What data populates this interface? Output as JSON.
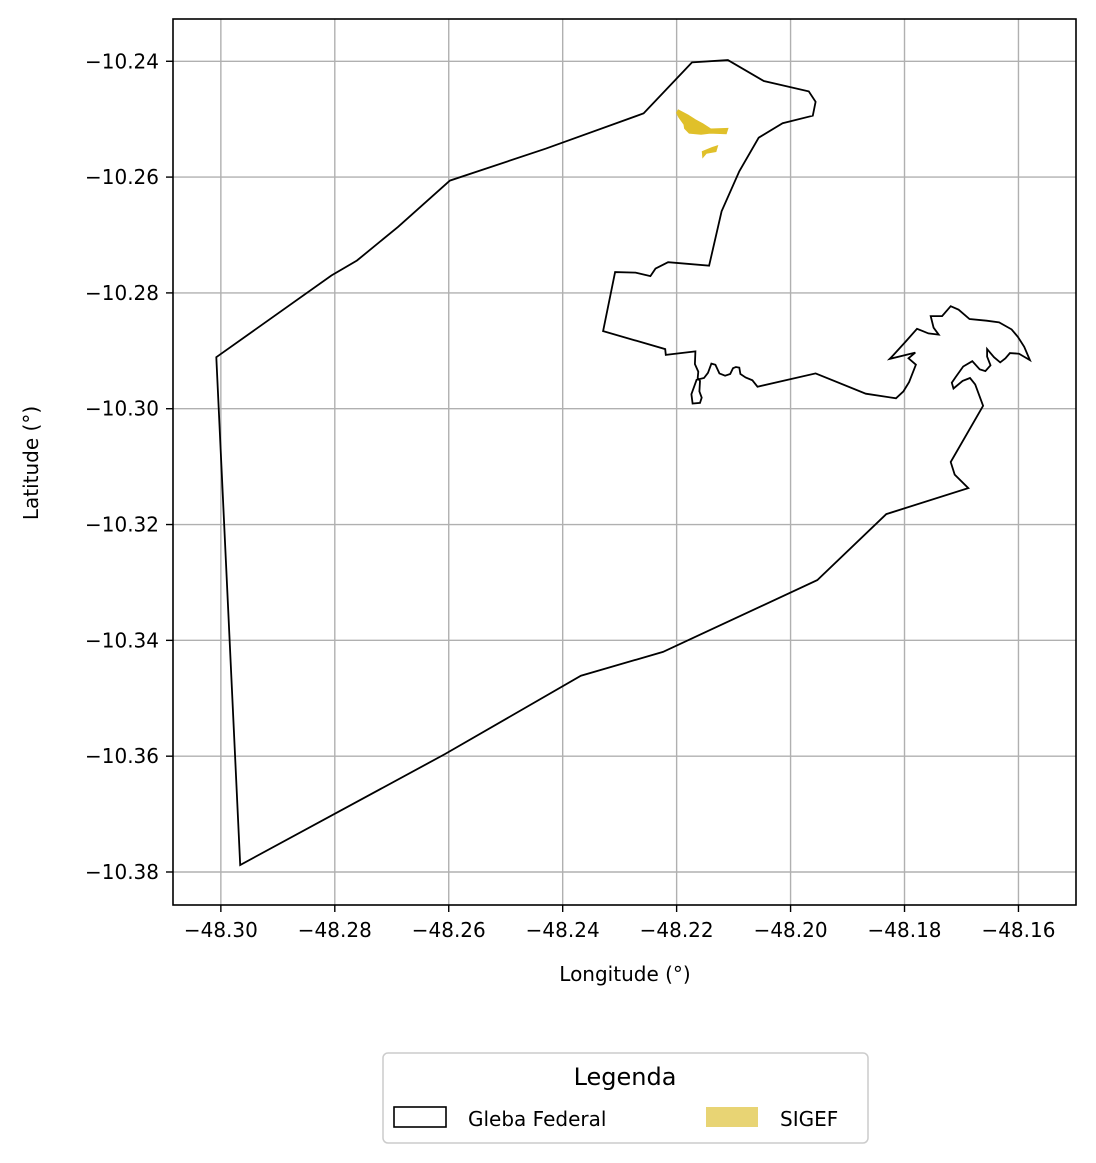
{
  "chart_data": {
    "type": "map",
    "xlabel": "Longitude (°)",
    "ylabel": "Latitude (°)",
    "xlim": [
      -48.3084,
      -48.1499
    ],
    "ylim": [
      -10.3857,
      -10.2327
    ],
    "grid": true,
    "x_ticks": [
      {
        "value": -48.3,
        "label": "−48.30"
      },
      {
        "value": -48.28,
        "label": "−48.28"
      },
      {
        "value": -48.26,
        "label": "−48.26"
      },
      {
        "value": -48.24,
        "label": "−48.24"
      },
      {
        "value": -48.22,
        "label": "−48.22"
      },
      {
        "value": -48.2,
        "label": "−48.20"
      },
      {
        "value": -48.18,
        "label": "−48.18"
      },
      {
        "value": -48.16,
        "label": "−48.16"
      }
    ],
    "y_ticks": [
      {
        "value": -10.24,
        "label": "−10.24"
      },
      {
        "value": -10.26,
        "label": "−10.26"
      },
      {
        "value": -10.28,
        "label": "−10.28"
      },
      {
        "value": -10.3,
        "label": "−10.30"
      },
      {
        "value": -10.32,
        "label": "−10.32"
      },
      {
        "value": -10.34,
        "label": "−10.34"
      },
      {
        "value": -10.36,
        "label": "−10.36"
      },
      {
        "value": -10.38,
        "label": "−10.38"
      }
    ],
    "legend": {
      "title": "Legenda",
      "placement": "bottom-center",
      "entries": [
        {
          "label": "Gleba Federal",
          "style": "outline",
          "color": "#000000"
        },
        {
          "label": "SIGEF",
          "style": "fill",
          "color": "#e8d474"
        }
      ]
    },
    "layers": [
      {
        "name": "Gleba Federal",
        "type": "polygon-outline",
        "stroke": "#000000",
        "coordinates": [
          [
            -48.3008,
            -10.2911
          ],
          [
            -48.2806,
            -10.277
          ],
          [
            -48.2761,
            -10.2744
          ],
          [
            -48.2689,
            -10.2686
          ],
          [
            -48.2598,
            -10.2606
          ],
          [
            -48.243,
            -10.2551
          ],
          [
            -48.2258,
            -10.249
          ],
          [
            -48.2173,
            -10.2402
          ],
          [
            -48.211,
            -10.2398
          ],
          [
            -48.2047,
            -10.2434
          ],
          [
            -48.1968,
            -10.2452
          ],
          [
            -48.1956,
            -10.247
          ],
          [
            -48.1961,
            -10.2494
          ],
          [
            -48.2014,
            -10.2507
          ],
          [
            -48.2056,
            -10.2532
          ],
          [
            -48.209,
            -10.259
          ],
          [
            -48.2121,
            -10.2659
          ],
          [
            -48.2143,
            -10.2753
          ],
          [
            -48.2215,
            -10.2747
          ],
          [
            -48.2237,
            -10.2758
          ],
          [
            -48.2246,
            -10.2771
          ],
          [
            -48.2272,
            -10.2765
          ],
          [
            -48.2308,
            -10.2764
          ],
          [
            -48.2329,
            -10.2866
          ],
          [
            -48.222,
            -10.2897
          ],
          [
            -48.2219,
            -10.2907
          ],
          [
            -48.2167,
            -10.2901
          ],
          [
            -48.2168,
            -10.2923
          ],
          [
            -48.2162,
            -10.2936
          ],
          [
            -48.2163,
            -10.2947
          ],
          [
            -48.2159,
            -10.2952
          ],
          [
            -48.216,
            -10.297
          ],
          [
            -48.2156,
            -10.2981
          ],
          [
            -48.2159,
            -10.299
          ],
          [
            -48.2172,
            -10.2991
          ],
          [
            -48.2174,
            -10.2975
          ],
          [
            -48.2165,
            -10.295
          ],
          [
            -48.2152,
            -10.2947
          ],
          [
            -48.2145,
            -10.2938
          ],
          [
            -48.2139,
            -10.2922
          ],
          [
            -48.2132,
            -10.2924
          ],
          [
            -48.2125,
            -10.2939
          ],
          [
            -48.2115,
            -10.2943
          ],
          [
            -48.2106,
            -10.294
          ],
          [
            -48.2101,
            -10.293
          ],
          [
            -48.2096,
            -10.2928
          ],
          [
            -48.209,
            -10.2929
          ],
          [
            -48.2088,
            -10.294
          ],
          [
            -48.2079,
            -10.2946
          ],
          [
            -48.2067,
            -10.2951
          ],
          [
            -48.2058,
            -10.2962
          ],
          [
            -48.1956,
            -10.2939
          ],
          [
            -48.1868,
            -10.2974
          ],
          [
            -48.1815,
            -10.2982
          ],
          [
            -48.1802,
            -10.297
          ],
          [
            -48.1792,
            -10.2954
          ],
          [
            -48.178,
            -10.2924
          ],
          [
            -48.1793,
            -10.2913
          ],
          [
            -48.1781,
            -10.2903
          ],
          [
            -48.1826,
            -10.2914
          ],
          [
            -48.182,
            -10.2908
          ],
          [
            -48.1797,
            -10.2883
          ],
          [
            -48.1778,
            -10.2862
          ],
          [
            -48.1768,
            -10.2866
          ],
          [
            -48.1758,
            -10.287
          ],
          [
            -48.174,
            -10.2872
          ],
          [
            -48.1749,
            -10.286
          ],
          [
            -48.1754,
            -10.284
          ],
          [
            -48.1734,
            -10.284
          ],
          [
            -48.1719,
            -10.2823
          ],
          [
            -48.1705,
            -10.2829
          ],
          [
            -48.1686,
            -10.2845
          ],
          [
            -48.1656,
            -10.2848
          ],
          [
            -48.1634,
            -10.2851
          ],
          [
            -48.1612,
            -10.2863
          ],
          [
            -48.1601,
            -10.2876
          ],
          [
            -48.159,
            -10.2893
          ],
          [
            -48.158,
            -10.2916
          ],
          [
            -48.1599,
            -10.2905
          ],
          [
            -48.1615,
            -10.2904
          ],
          [
            -48.1623,
            -10.2913
          ],
          [
            -48.1632,
            -10.292
          ],
          [
            -48.1643,
            -10.2911
          ],
          [
            -48.1655,
            -10.2897
          ],
          [
            -48.1655,
            -10.291
          ],
          [
            -48.1649,
            -10.2925
          ],
          [
            -48.1658,
            -10.2935
          ],
          [
            -48.1668,
            -10.2932
          ],
          [
            -48.1681,
            -10.2918
          ],
          [
            -48.1697,
            -10.2927
          ],
          [
            -48.171,
            -10.2945
          ],
          [
            -48.1717,
            -10.2955
          ],
          [
            -48.1714,
            -10.2965
          ],
          [
            -48.1698,
            -10.2952
          ],
          [
            -48.1685,
            -10.2947
          ],
          [
            -48.1676,
            -10.2958
          ],
          [
            -48.1662,
            -10.2995
          ],
          [
            -48.1719,
            -10.3092
          ],
          [
            -48.1712,
            -10.3114
          ],
          [
            -48.1688,
            -10.3137
          ],
          [
            -48.1832,
            -10.3182
          ],
          [
            -48.1953,
            -10.3296
          ],
          [
            -48.2224,
            -10.342
          ],
          [
            -48.2368,
            -10.3461
          ],
          [
            -48.2606,
            -10.3596
          ],
          [
            -48.2966,
            -10.3788
          ],
          [
            -48.3008,
            -10.2911
          ]
        ]
      },
      {
        "name": "SIGEF",
        "type": "polygon-fill",
        "fill": "#e0c02a",
        "shapes": [
          [
            [
              -48.2197,
              -10.2484
            ],
            [
              -48.218,
              -10.2493
            ],
            [
              -48.2167,
              -10.2501
            ],
            [
              -48.2154,
              -10.2508
            ],
            [
              -48.214,
              -10.2517
            ],
            [
              -48.211,
              -10.2516
            ],
            [
              -48.2113,
              -10.2525
            ],
            [
              -48.2141,
              -10.2524
            ],
            [
              -48.2157,
              -10.2526
            ],
            [
              -48.2178,
              -10.2524
            ],
            [
              -48.2186,
              -10.2516
            ],
            [
              -48.2187,
              -10.2509
            ],
            [
              -48.2196,
              -10.2497
            ],
            [
              -48.22,
              -10.2489
            ]
          ],
          [
            [
              -48.2155,
              -10.2556
            ],
            [
              -48.2138,
              -10.2549
            ],
            [
              -48.2128,
              -10.2546
            ],
            [
              -48.2131,
              -10.2556
            ],
            [
              -48.2148,
              -10.2559
            ],
            [
              -48.2154,
              -10.2566
            ]
          ]
        ]
      }
    ]
  }
}
